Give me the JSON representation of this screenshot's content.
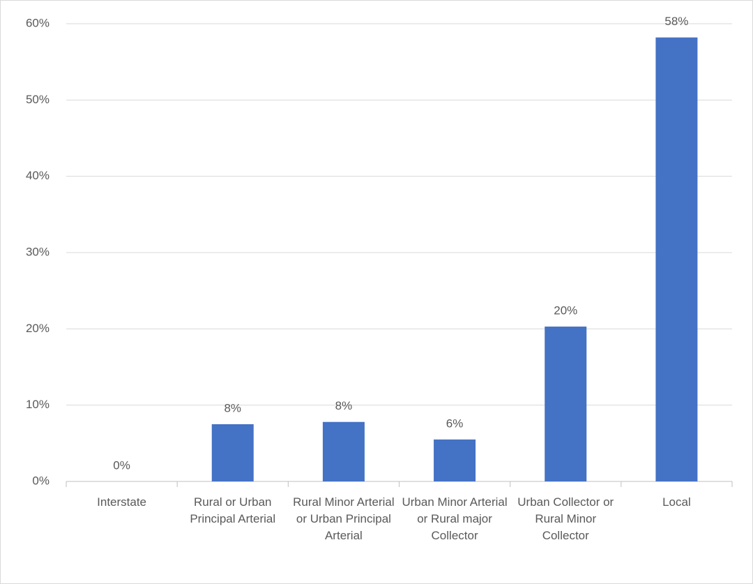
{
  "chart_data": {
    "type": "bar",
    "categories": [
      "Interstate",
      "Rural or Urban Principal Arterial",
      "Rural Minor Arterial or Urban Principal Arterial",
      "Urban Minor Arterial or Rural major Collector",
      "Urban Collector or Rural Minor Collector",
      "Local"
    ],
    "values": [
      0,
      7.5,
      7.8,
      5.5,
      20.3,
      58.2
    ],
    "value_labels": [
      "0%",
      "8%",
      "8%",
      "6%",
      "20%",
      "58%"
    ],
    "color": "#4472c4",
    "ylim": [
      0,
      60
    ],
    "yticks": [
      {
        "value": 0,
        "label": "0%"
      },
      {
        "value": 10,
        "label": "10%"
      },
      {
        "value": 20,
        "label": "20%"
      },
      {
        "value": 30,
        "label": "30%"
      },
      {
        "value": 40,
        "label": "40%"
      },
      {
        "value": 50,
        "label": "50%"
      },
      {
        "value": 60,
        "label": "60%"
      }
    ],
    "grid": true
  }
}
